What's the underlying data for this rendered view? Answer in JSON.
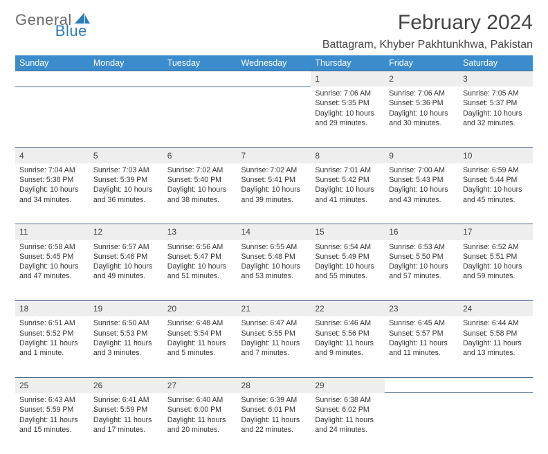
{
  "brand": {
    "part1": "General",
    "part2": "Blue"
  },
  "title": "February 2024",
  "location": "Battagram, Khyber Pakhtunkhwa, Pakistan",
  "colors": {
    "header_bg": "#3b8ccc",
    "header_fg": "#ffffff",
    "daynum_bg": "#eeeeee",
    "border": "#4a6a8a",
    "brand_gray": "#6b6b6b",
    "brand_blue": "#2b7bbf",
    "text": "#333333",
    "background": "#ffffff"
  },
  "typography": {
    "title_fontsize_pt": 22,
    "location_fontsize_pt": 12,
    "dayheader_fontsize_pt": 9.5,
    "cell_fontsize_pt": 8
  },
  "day_headers": [
    "Sunday",
    "Monday",
    "Tuesday",
    "Wednesday",
    "Thursday",
    "Friday",
    "Saturday"
  ],
  "weeks": [
    {
      "days": [
        null,
        null,
        null,
        null,
        {
          "n": "1",
          "sr": "7:06 AM",
          "ss": "5:35 PM",
          "dl": "10 hours and 29 minutes."
        },
        {
          "n": "2",
          "sr": "7:06 AM",
          "ss": "5:36 PM",
          "dl": "10 hours and 30 minutes."
        },
        {
          "n": "3",
          "sr": "7:05 AM",
          "ss": "5:37 PM",
          "dl": "10 hours and 32 minutes."
        }
      ]
    },
    {
      "days": [
        {
          "n": "4",
          "sr": "7:04 AM",
          "ss": "5:38 PM",
          "dl": "10 hours and 34 minutes."
        },
        {
          "n": "5",
          "sr": "7:03 AM",
          "ss": "5:39 PM",
          "dl": "10 hours and 36 minutes."
        },
        {
          "n": "6",
          "sr": "7:02 AM",
          "ss": "5:40 PM",
          "dl": "10 hours and 38 minutes."
        },
        {
          "n": "7",
          "sr": "7:02 AM",
          "ss": "5:41 PM",
          "dl": "10 hours and 39 minutes."
        },
        {
          "n": "8",
          "sr": "7:01 AM",
          "ss": "5:42 PM",
          "dl": "10 hours and 41 minutes."
        },
        {
          "n": "9",
          "sr": "7:00 AM",
          "ss": "5:43 PM",
          "dl": "10 hours and 43 minutes."
        },
        {
          "n": "10",
          "sr": "6:59 AM",
          "ss": "5:44 PM",
          "dl": "10 hours and 45 minutes."
        }
      ]
    },
    {
      "days": [
        {
          "n": "11",
          "sr": "6:58 AM",
          "ss": "5:45 PM",
          "dl": "10 hours and 47 minutes."
        },
        {
          "n": "12",
          "sr": "6:57 AM",
          "ss": "5:46 PM",
          "dl": "10 hours and 49 minutes."
        },
        {
          "n": "13",
          "sr": "6:56 AM",
          "ss": "5:47 PM",
          "dl": "10 hours and 51 minutes."
        },
        {
          "n": "14",
          "sr": "6:55 AM",
          "ss": "5:48 PM",
          "dl": "10 hours and 53 minutes."
        },
        {
          "n": "15",
          "sr": "6:54 AM",
          "ss": "5:49 PM",
          "dl": "10 hours and 55 minutes."
        },
        {
          "n": "16",
          "sr": "6:53 AM",
          "ss": "5:50 PM",
          "dl": "10 hours and 57 minutes."
        },
        {
          "n": "17",
          "sr": "6:52 AM",
          "ss": "5:51 PM",
          "dl": "10 hours and 59 minutes."
        }
      ]
    },
    {
      "days": [
        {
          "n": "18",
          "sr": "6:51 AM",
          "ss": "5:52 PM",
          "dl": "11 hours and 1 minute."
        },
        {
          "n": "19",
          "sr": "6:50 AM",
          "ss": "5:53 PM",
          "dl": "11 hours and 3 minutes."
        },
        {
          "n": "20",
          "sr": "6:48 AM",
          "ss": "5:54 PM",
          "dl": "11 hours and 5 minutes."
        },
        {
          "n": "21",
          "sr": "6:47 AM",
          "ss": "5:55 PM",
          "dl": "11 hours and 7 minutes."
        },
        {
          "n": "22",
          "sr": "6:46 AM",
          "ss": "5:56 PM",
          "dl": "11 hours and 9 minutes."
        },
        {
          "n": "23",
          "sr": "6:45 AM",
          "ss": "5:57 PM",
          "dl": "11 hours and 11 minutes."
        },
        {
          "n": "24",
          "sr": "6:44 AM",
          "ss": "5:58 PM",
          "dl": "11 hours and 13 minutes."
        }
      ]
    },
    {
      "days": [
        {
          "n": "25",
          "sr": "6:43 AM",
          "ss": "5:59 PM",
          "dl": "11 hours and 15 minutes."
        },
        {
          "n": "26",
          "sr": "6:41 AM",
          "ss": "5:59 PM",
          "dl": "11 hours and 17 minutes."
        },
        {
          "n": "27",
          "sr": "6:40 AM",
          "ss": "6:00 PM",
          "dl": "11 hours and 20 minutes."
        },
        {
          "n": "28",
          "sr": "6:39 AM",
          "ss": "6:01 PM",
          "dl": "11 hours and 22 minutes."
        },
        {
          "n": "29",
          "sr": "6:38 AM",
          "ss": "6:02 PM",
          "dl": "11 hours and 24 minutes."
        },
        null,
        null
      ]
    }
  ],
  "labels": {
    "sunrise": "Sunrise:",
    "sunset": "Sunset:",
    "daylight": "Daylight:"
  }
}
